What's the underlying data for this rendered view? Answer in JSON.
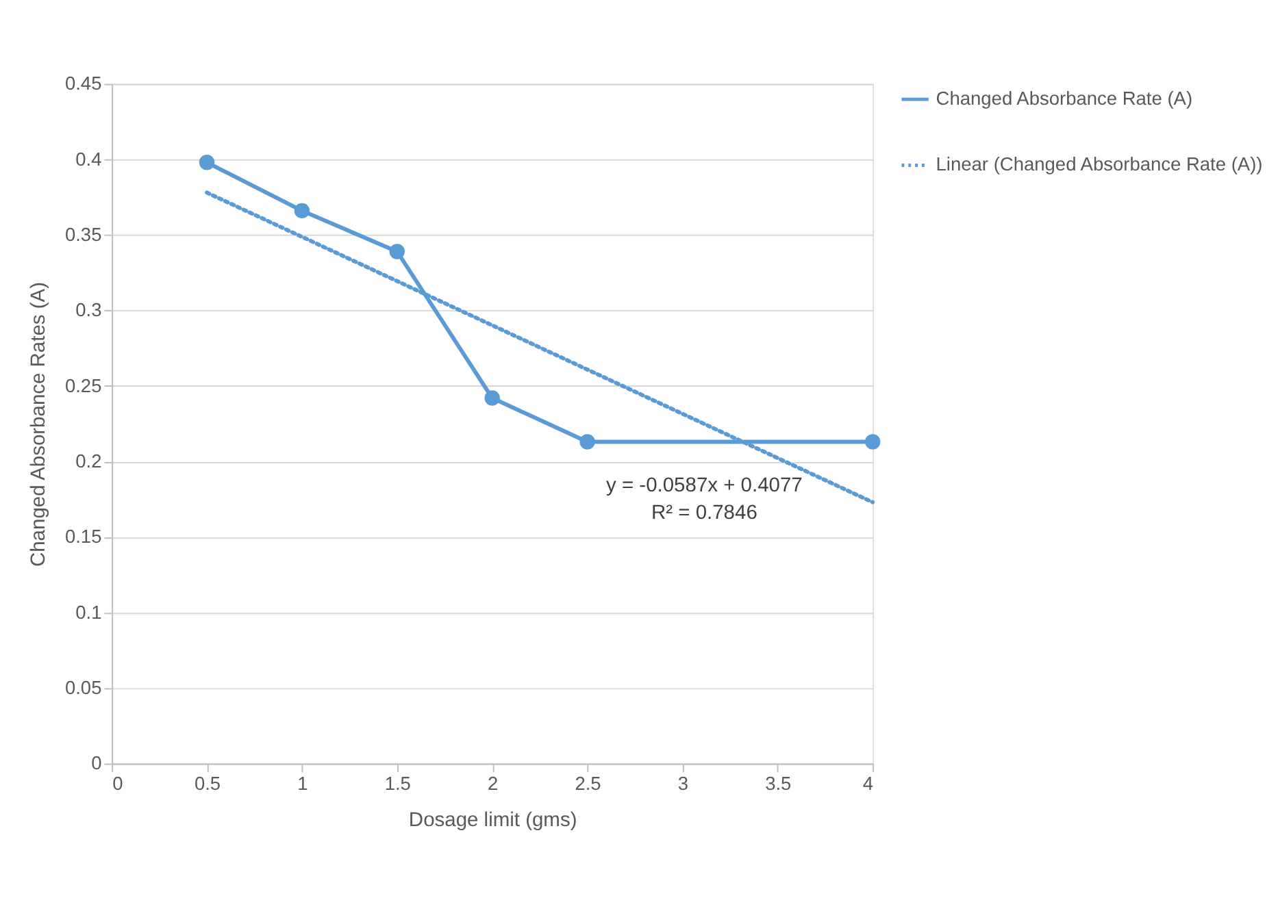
{
  "chart_data": {
    "type": "line",
    "xlabel": "Dosage limit (gms)",
    "ylabel": "Changed Absorbance Rates (A)",
    "x": [
      0.5,
      1,
      1.5,
      2,
      2.5,
      4
    ],
    "series": [
      {
        "name": "Changed Absorbance Rate (A)",
        "color": "#5b9bd5",
        "values": [
          0.398,
          0.366,
          0.339,
          0.242,
          0.213,
          0.213
        ],
        "marker": "circle",
        "line_style": "solid"
      },
      {
        "name": "Linear (Changed Absorbance Rate (A))",
        "type": "line",
        "color": "#5b9bd5",
        "x": [
          0.5,
          4
        ],
        "values": [
          0.378,
          0.173
        ],
        "marker": "none",
        "line_style": "dotted"
      }
    ],
    "xlim": [
      0,
      4
    ],
    "xticks": [
      0,
      0.5,
      1,
      1.5,
      2,
      2.5,
      3,
      3.5,
      4
    ],
    "ylim": [
      0,
      0.45
    ],
    "yticks": [
      0,
      0.05,
      0.1,
      0.15,
      0.2,
      0.25,
      0.3,
      0.35,
      0.4,
      0.45
    ],
    "grid": "y",
    "legend": "right",
    "annotations": [
      "y = -0.0587x + 0.4077",
      "R² = 0.7846"
    ]
  }
}
